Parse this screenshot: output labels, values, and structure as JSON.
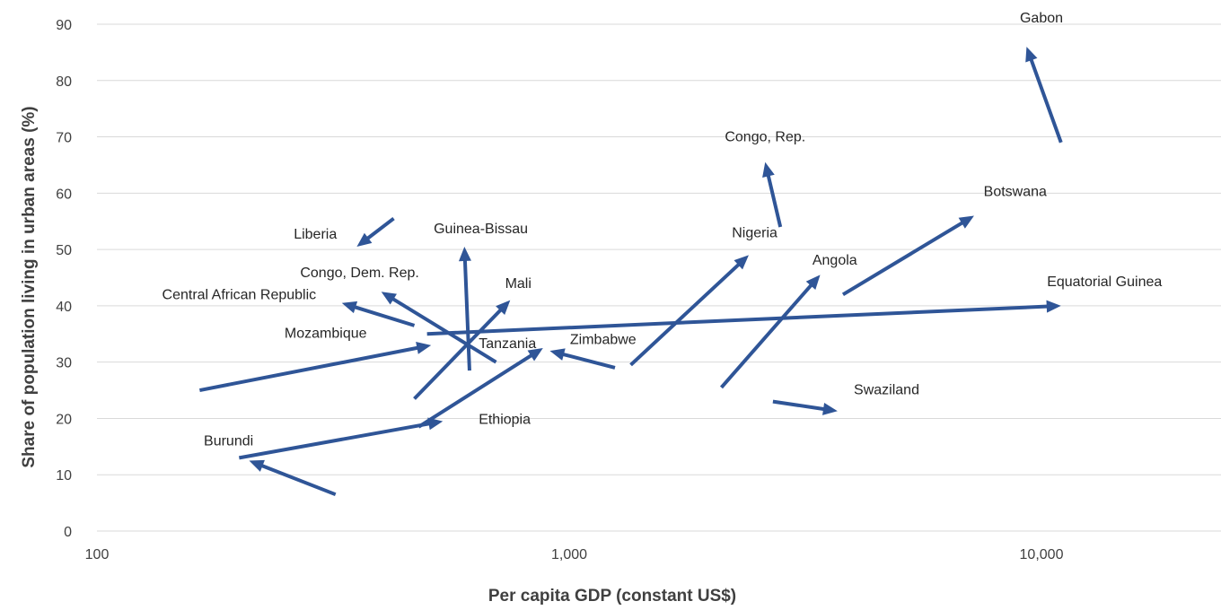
{
  "chart_data": {
    "type": "scatter",
    "subtype": "arrow-connected",
    "title": "",
    "xlabel": "Per capita GDP (constant US$)",
    "ylabel": "Share of population living in urban areas (%)",
    "x_scale": "log",
    "xlim": [
      100,
      25000
    ],
    "ylim": [
      0,
      90
    ],
    "x_ticks": [
      100,
      1000,
      10000
    ],
    "x_tick_labels": [
      "100",
      "1,000",
      "10,000"
    ],
    "y_ticks": [
      0,
      10,
      20,
      30,
      40,
      50,
      60,
      70,
      80,
      90
    ],
    "y_tick_labels": [
      "0",
      "10",
      "20",
      "30",
      "40",
      "50",
      "60",
      "70",
      "80",
      "90"
    ],
    "grid": "horizontal",
    "legend": "none",
    "arrow_color": "#2f5597",
    "series": [
      {
        "name": "Gabon",
        "from": [
          11000,
          69
        ],
        "to": [
          9300,
          86
        ]
      },
      {
        "name": "Congo, Rep.",
        "from": [
          2800,
          54
        ],
        "to": [
          2600,
          65.5
        ]
      },
      {
        "name": "Botswana",
        "from": [
          3800,
          42
        ],
        "to": [
          7200,
          56
        ]
      },
      {
        "name": "Equatorial Guinea",
        "from": [
          500,
          35
        ],
        "to": [
          11000,
          40
        ]
      },
      {
        "name": "Nigeria",
        "from": [
          1350,
          29.5
        ],
        "to": [
          2400,
          49
        ]
      },
      {
        "name": "Angola",
        "from": [
          2100,
          25.5
        ],
        "to": [
          3400,
          45.5
        ]
      },
      {
        "name": "Swaziland",
        "from": [
          2700,
          23
        ],
        "to": [
          3700,
          21.3
        ]
      },
      {
        "name": "Zimbabwe",
        "from": [
          1250,
          29
        ],
        "to": [
          910,
          32
        ]
      },
      {
        "name": "Liberia",
        "from": [
          425,
          55.5
        ],
        "to": [
          355,
          50.5
        ]
      },
      {
        "name": "Guinea-Bissau",
        "from": [
          615,
          28.5
        ],
        "to": [
          600,
          50.5
        ]
      },
      {
        "name": "Mali",
        "from": [
          470,
          23.5
        ],
        "to": [
          750,
          41
        ]
      },
      {
        "name": "Congo, Dem. Rep.",
        "from": [
          700,
          30
        ],
        "to": [
          400,
          42.5
        ]
      },
      {
        "name": "Central African Republic",
        "from": [
          470,
          36.5
        ],
        "to": [
          330,
          40.5
        ]
      },
      {
        "name": "Mozambique",
        "from": [
          165,
          25
        ],
        "to": [
          510,
          33
        ]
      },
      {
        "name": "Tanzania",
        "from": [
          480,
          18.5
        ],
        "to": [
          880,
          32.5
        ]
      },
      {
        "name": "Ethiopia",
        "from": [
          200,
          13
        ],
        "to": [
          540,
          19.5
        ]
      },
      {
        "name": "Burundi",
        "from": [
          320,
          6.5
        ],
        "to": [
          210,
          12.5
        ]
      }
    ],
    "annotations": [
      {
        "text": "Gabon",
        "x": 10000,
        "y": 90.3,
        "anchor": "middle"
      },
      {
        "text": "Congo, Rep.",
        "x": 2600,
        "y": 69.2,
        "anchor": "middle"
      },
      {
        "text": "Botswana",
        "x": 8800,
        "y": 59.5,
        "anchor": "middle"
      },
      {
        "text": "Equatorial Guinea",
        "x": 13600,
        "y": 43.5,
        "anchor": "middle"
      },
      {
        "text": "Nigeria",
        "x": 2470,
        "y": 52.2,
        "anchor": "middle"
      },
      {
        "text": "Angola",
        "x": 3650,
        "y": 47.3,
        "anchor": "middle"
      },
      {
        "text": "Swaziland",
        "x": 4700,
        "y": 24.3,
        "anchor": "middle"
      },
      {
        "text": "Zimbabwe",
        "x": 1180,
        "y": 33.2,
        "anchor": "middle"
      },
      {
        "text": "Liberia",
        "x": 290,
        "y": 51.9,
        "anchor": "middle"
      },
      {
        "text": "Guinea-Bissau",
        "x": 650,
        "y": 52.9,
        "anchor": "middle"
      },
      {
        "text": "Mali",
        "x": 780,
        "y": 43.2,
        "anchor": "middle"
      },
      {
        "text": "Congo, Dem. Rep.",
        "x": 360,
        "y": 45.1,
        "anchor": "middle"
      },
      {
        "text": "Central African Republic",
        "x": 200,
        "y": 41.2,
        "anchor": "middle"
      },
      {
        "text": "Mozambique",
        "x": 305,
        "y": 34.3,
        "anchor": "middle"
      },
      {
        "text": "Tanzania",
        "x": 740,
        "y": 32.5,
        "anchor": "middle"
      },
      {
        "text": "Ethiopia",
        "x": 730,
        "y": 19.0,
        "anchor": "middle"
      },
      {
        "text": "Burundi",
        "x": 190,
        "y": 15.2,
        "anchor": "middle"
      }
    ]
  }
}
